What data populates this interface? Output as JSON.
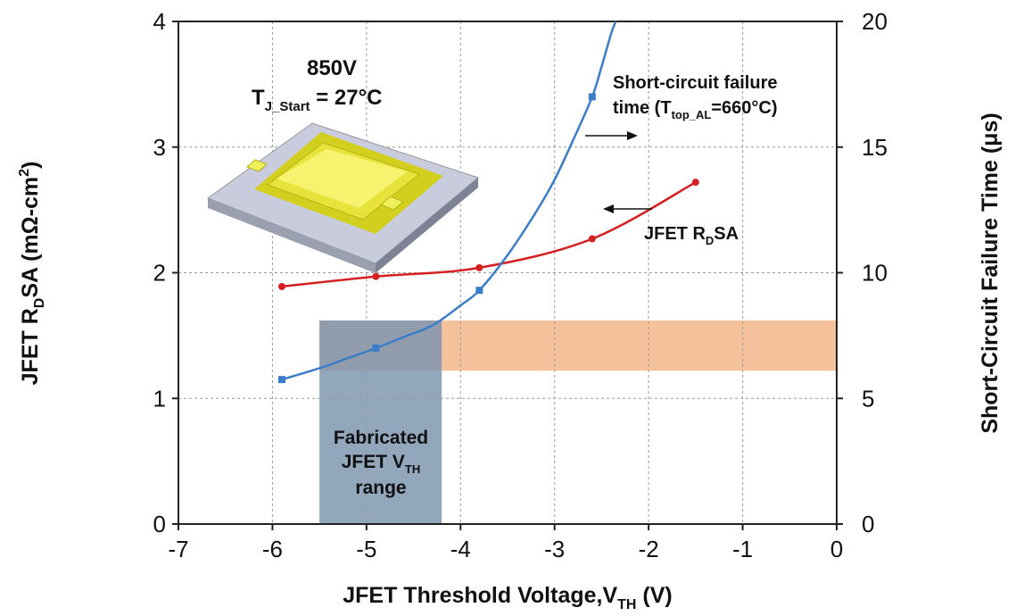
{
  "chart_data": {
    "type": "line",
    "x_axis": {
      "label_main": "JFET Threshold Voltage,V",
      "label_sub": "TH",
      "label_unit": " (V)",
      "lim": [
        -7,
        0
      ],
      "ticks": [
        "-7",
        "-6",
        "-5",
        "-4",
        "-3",
        "-2",
        "-1",
        "0"
      ]
    },
    "y_left": {
      "label_main": "JFET R",
      "label_sub": "D",
      "label_mid": "SA (mΩ-cm",
      "label_sup": "2",
      "label_end": ")",
      "lim": [
        0,
        4
      ],
      "ticks": [
        "0",
        "1",
        "2",
        "3",
        "4"
      ]
    },
    "y_right": {
      "label": "Short-Circuit Failure Time (μs)",
      "lim": [
        0,
        20
      ],
      "ticks": [
        "0",
        "5",
        "10",
        "15",
        "20"
      ]
    },
    "grid": true,
    "series": [
      {
        "name": "JFET RDSA",
        "axis": "left",
        "color": "#d42020",
        "x": [
          -5.9,
          -4.9,
          -3.8,
          -2.6,
          -1.5
        ],
        "y": [
          1.89,
          1.97,
          2.04,
          2.27,
          2.72
        ]
      },
      {
        "name": "Short-circuit failure time",
        "axis": "right",
        "color": "#3b7dc8",
        "x": [
          -5.9,
          -4.9,
          -3.8,
          -2.6
        ],
        "y": [
          5.75,
          7.0,
          9.3,
          17.0
        ],
        "curve_x": [
          -5.9,
          -5.5,
          -5.2,
          -4.9,
          -4.6,
          -4.3,
          -4.0,
          -3.8,
          -3.5,
          -3.2,
          -3.0,
          -2.8,
          -2.6,
          -2.5,
          -2.4,
          -2.35
        ],
        "curve_y": [
          5.75,
          6.2,
          6.6,
          7.0,
          7.45,
          7.9,
          8.7,
          9.3,
          10.7,
          12.4,
          13.7,
          15.3,
          17.0,
          18.2,
          19.5,
          20.0
        ]
      }
    ],
    "regions": [
      {
        "name": "threshold-range",
        "x": [
          -5.5,
          -4.2
        ],
        "y_left": [
          0,
          1.62
        ],
        "color": "#7f97b0"
      },
      {
        "name": "rdsa-band",
        "x": [
          -5.5,
          0
        ],
        "y_left": [
          1.22,
          1.62
        ],
        "color": "#f6c29c"
      }
    ],
    "annotations": {
      "voltage": "850V",
      "temp_main": "T",
      "temp_sub": "J_Start",
      "temp_rest": " = 27°C",
      "sc_line1": "Short-circuit failure",
      "sc_line2_a": "time (T",
      "sc_line2_sub": "top_AL",
      "sc_line2_b": "=660°C)",
      "rdsa_main": "JFET R",
      "rdsa_sub": "D",
      "rdsa_rest": "SA",
      "fab_line1": "Fabricated",
      "fab_line2_a": "JFET V",
      "fab_line2_sub": "TH",
      "fab_line3": "range"
    }
  }
}
